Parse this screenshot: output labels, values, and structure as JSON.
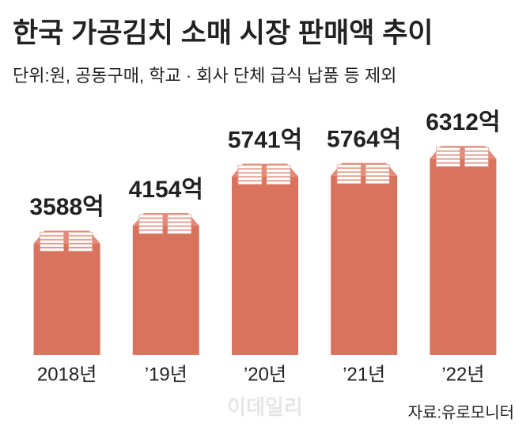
{
  "chart_data": {
    "type": "bar",
    "title": "한국 가공김치 소매 시장 판매액 추이",
    "subtitle": "단위:원, 공동구매, 학교 · 회사 단체 급식 납품 등 제외",
    "categories": [
      "2018년",
      "’19년",
      "’20년",
      "’21년",
      "’22년"
    ],
    "values": [
      3588,
      4154,
      5741,
      5764,
      6312
    ],
    "value_labels": [
      "3588억",
      "4154억",
      "5741억",
      "5764억",
      "6312억"
    ],
    "color": "#d9735e",
    "ylim": [
      0,
      8000
    ],
    "source": "자료:유로모니터",
    "watermark": "이데일리"
  }
}
